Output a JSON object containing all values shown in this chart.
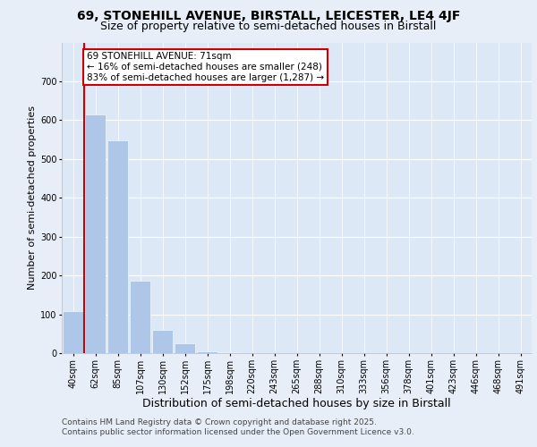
{
  "title1": "69, STONEHILL AVENUE, BIRSTALL, LEICESTER, LE4 4JF",
  "title2": "Size of property relative to semi-detached houses in Birstall",
  "xlabel": "Distribution of semi-detached houses by size in Birstall",
  "ylabel": "Number of semi-detached properties",
  "bar_labels": [
    "40sqm",
    "62sqm",
    "85sqm",
    "107sqm",
    "130sqm",
    "152sqm",
    "175sqm",
    "198sqm",
    "220sqm",
    "243sqm",
    "265sqm",
    "288sqm",
    "310sqm",
    "333sqm",
    "356sqm",
    "378sqm",
    "401sqm",
    "423sqm",
    "446sqm",
    "468sqm",
    "491sqm"
  ],
  "bar_values": [
    108,
    614,
    547,
    186,
    60,
    25,
    5,
    2,
    0,
    0,
    0,
    0,
    0,
    0,
    0,
    0,
    0,
    0,
    0,
    0,
    0
  ],
  "bar_color": "#aec6e8",
  "annotation_text": "69 STONEHILL AVENUE: 71sqm\n← 16% of semi-detached houses are smaller (248)\n83% of semi-detached houses are larger (1,287) →",
  "annotation_box_color": "#ffffff",
  "annotation_box_edge": "#cc0000",
  "vline_color": "#cc0000",
  "ylim": [
    0,
    800
  ],
  "yticks": [
    0,
    100,
    200,
    300,
    400,
    500,
    600,
    700,
    800
  ],
  "background_color": "#dce8f5",
  "fig_background_color": "#e8eef8",
  "footer_text": "Contains HM Land Registry data © Crown copyright and database right 2025.\nContains public sector information licensed under the Open Government Licence v3.0.",
  "title1_fontsize": 10,
  "title2_fontsize": 9,
  "xlabel_fontsize": 9,
  "ylabel_fontsize": 8,
  "tick_fontsize": 7,
  "annotation_fontsize": 7.5,
  "footer_fontsize": 6.5
}
